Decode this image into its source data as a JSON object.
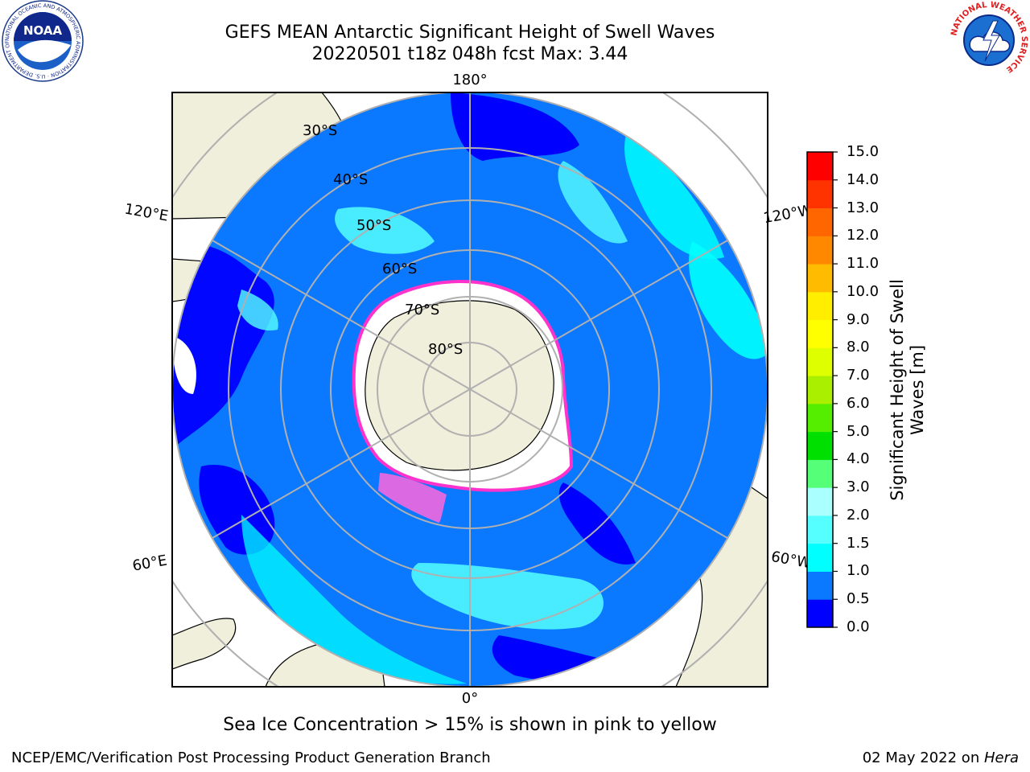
{
  "header": {
    "title": "GEFS MEAN Antarctic Significant Height of Swell Waves",
    "subtitle": "20220501 t18z 048h fcst   Max: 3.44"
  },
  "logos": {
    "noaa": {
      "center_text": "NOAA",
      "ring_text": "NATIONAL OCEANIC AND ATMOSPHERIC ADMINISTRATION · U.S. DEPARTMENT OF COMMERCE"
    },
    "nws": {
      "ring_text": "NATIONAL WEATHER SERVICE"
    }
  },
  "map": {
    "projection": "south-polar-stereographic",
    "longitude_labels": {
      "top": "180°",
      "bottom": "0°",
      "left_upper": "120°E",
      "right_upper": "120°W",
      "left_lower": "60°E",
      "right_lower": "60°W"
    },
    "latitude_labels": [
      "30°S",
      "40°S",
      "50°S",
      "60°S",
      "70°S",
      "80°S"
    ]
  },
  "colorbar": {
    "label": "Significant Height of Swell Waves [m]",
    "label_lines": [
      "Significant Height of Swell",
      "Waves [m]"
    ],
    "ticks": [
      "0.0",
      "0.5",
      "1.0",
      "1.5",
      "2.0",
      "3.0",
      "4.0",
      "5.0",
      "6.0",
      "7.0",
      "8.0",
      "9.0",
      "10.0",
      "11.0",
      "12.0",
      "13.0",
      "14.0",
      "15.0"
    ],
    "colors": [
      "#0000ff",
      "#0a78ff",
      "#00ffff",
      "#55ffff",
      "#aaffff",
      "#55ff77",
      "#00e000",
      "#55ee00",
      "#aaee00",
      "#ddff00",
      "#ffff00",
      "#ffee00",
      "#ffbb00",
      "#ff8800",
      "#ff6600",
      "#ff3300",
      "#ff0000"
    ]
  },
  "map_colors": {
    "land": "#efefdb",
    "ocean_low": "#0000ff",
    "ocean_mid": "#0a78ff",
    "ocean_high": "#00ffff",
    "sea_ice_edge": "#ff33cc"
  },
  "notes": {
    "sea_ice": "Sea Ice Concentration > 15% is shown in pink to yellow"
  },
  "footer": {
    "credit": "NCEP/EMC/Verification Post Processing Product Generation Branch",
    "date": "02 May 2022 on ",
    "host": "Hera"
  }
}
